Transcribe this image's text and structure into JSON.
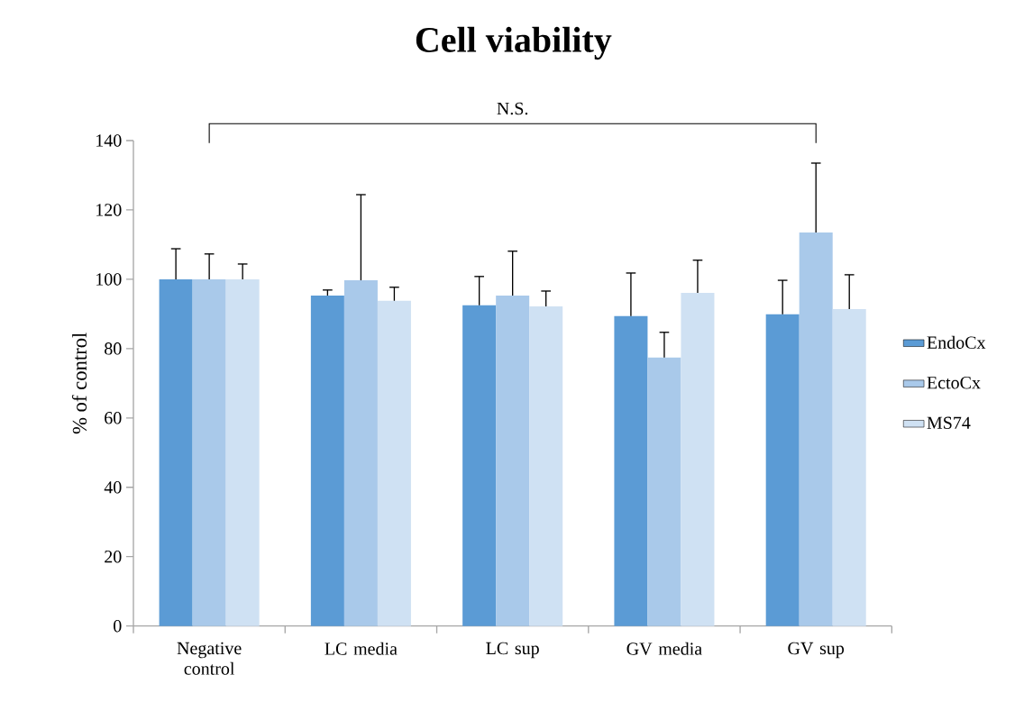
{
  "chart_data": {
    "type": "bar",
    "title": "Cell viability",
    "ylabel": "% of control",
    "categories": [
      "Negative control",
      "LC media",
      "LC sup",
      "GV media",
      "GV sup"
    ],
    "series": [
      {
        "name": "EndoCx",
        "color": "#5b9bd5",
        "values": [
          100,
          95.3,
          92.5,
          89.4,
          89.9
        ],
        "errors": [
          [
            100,
            108.8
          ],
          [
            95.3,
            96.9
          ],
          [
            92.5,
            100.8
          ],
          [
            89.4,
            101.8
          ],
          [
            89.9,
            99.7
          ]
        ]
      },
      {
        "name": "EctoCx",
        "color": "#a9c9ea",
        "values": [
          100,
          99.7,
          95.3,
          77.4,
          113.5
        ],
        "errors": [
          [
            100,
            107.3
          ],
          [
            99.7,
            124.4
          ],
          [
            95.3,
            108.1
          ],
          [
            77.4,
            84.7
          ],
          [
            113.5,
            133.5
          ]
        ]
      },
      {
        "name": "MS74",
        "color": "#cfe1f3",
        "values": [
          100,
          93.8,
          92.2,
          96.1,
          91.4
        ],
        "errors": [
          [
            100,
            104.4
          ],
          [
            93.8,
            97.7
          ],
          [
            92.2,
            96.6
          ],
          [
            96.1,
            105.5
          ],
          [
            91.4,
            101.3
          ]
        ]
      }
    ],
    "ylim": [
      0,
      140
    ],
    "yticks": [
      0,
      20,
      40,
      60,
      80,
      100,
      120,
      140
    ],
    "annotations": [
      "N.S."
    ],
    "grid": false,
    "legend": "right"
  }
}
